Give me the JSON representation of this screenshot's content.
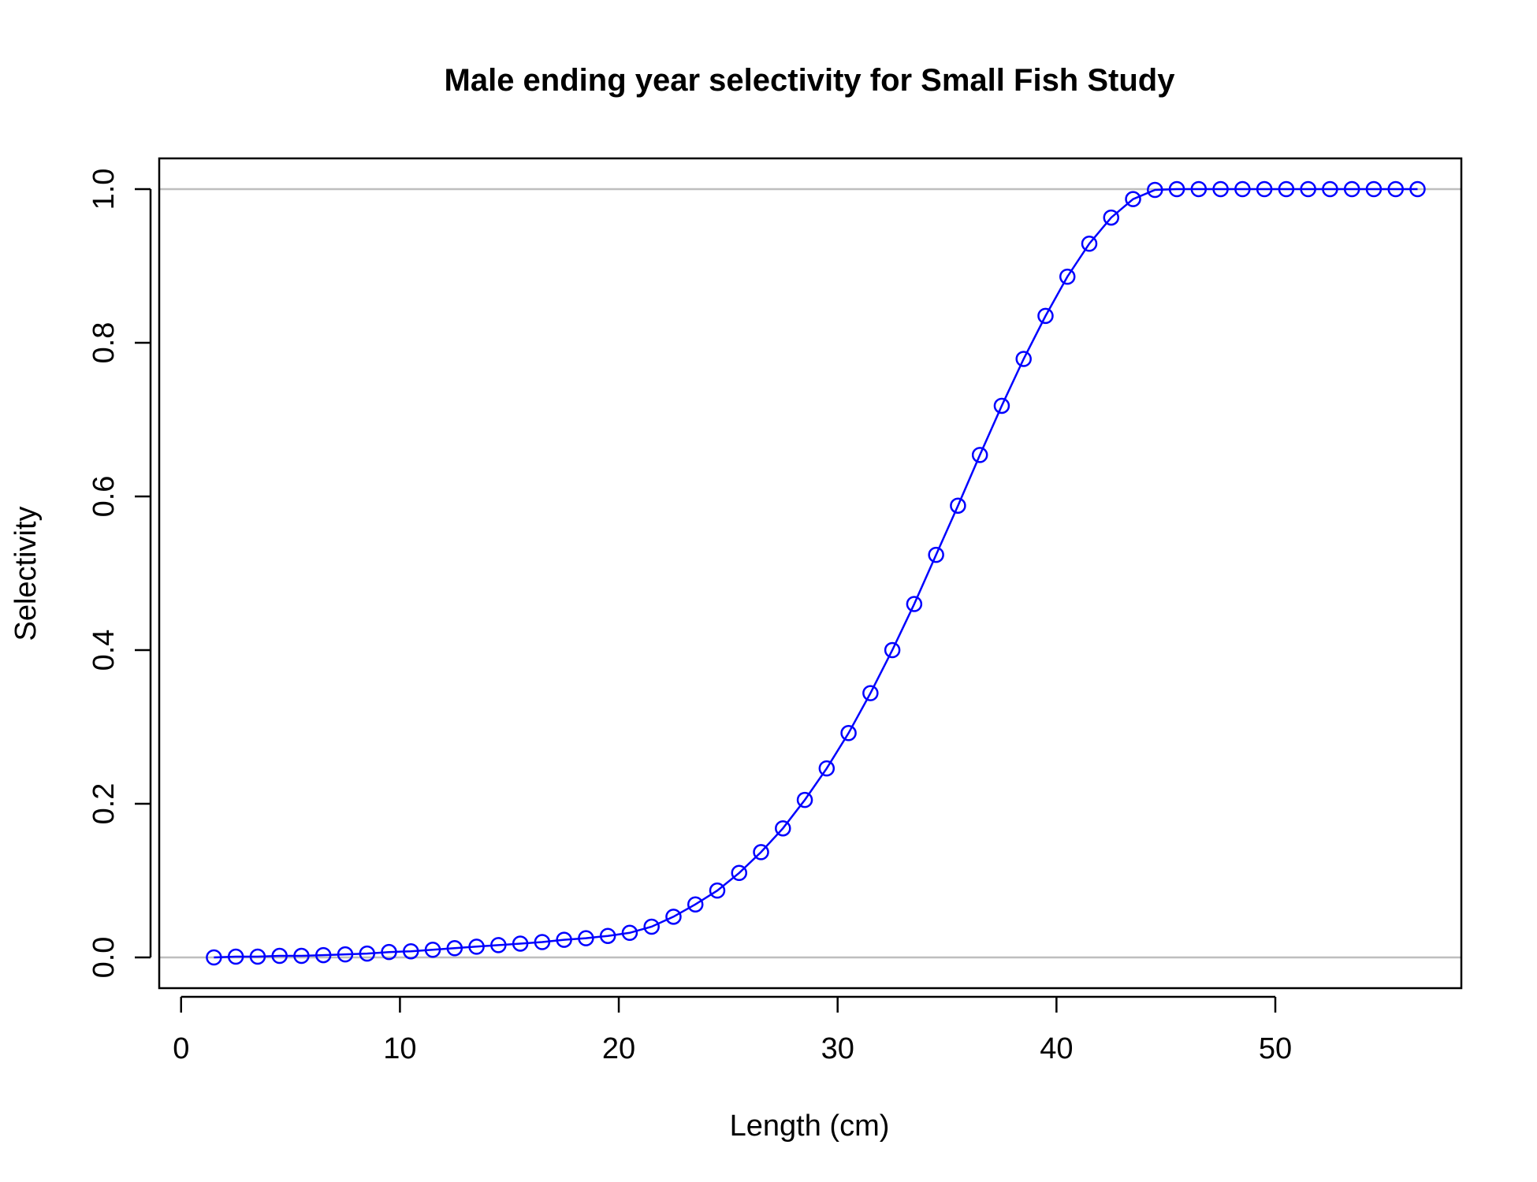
{
  "chart_data": {
    "type": "line",
    "title": "Male ending year selectivity for Small Fish Study",
    "xlabel": "Length (cm)",
    "ylabel": "Selectivity",
    "xlim": [
      -1.0,
      58.5
    ],
    "ylim": [
      -0.04,
      1.04
    ],
    "x_ticks": [
      0,
      10,
      20,
      30,
      40,
      50
    ],
    "y_ticks": [
      0.0,
      0.2,
      0.4,
      0.6,
      0.8,
      1.0
    ],
    "x_tick_labels": [
      "0",
      "10",
      "20",
      "30",
      "40",
      "50"
    ],
    "y_tick_labels": [
      "0.0",
      "0.2",
      "0.4",
      "0.6",
      "0.8",
      "1.0"
    ],
    "reference_lines_y": [
      0,
      1
    ],
    "reference_line_color": "#bebebe",
    "series_color": "#0000ff",
    "marker": "open-circle",
    "series": [
      {
        "x": [
          1.5,
          2.5,
          3.5,
          4.5,
          5.5,
          6.5,
          7.5,
          8.5,
          9.5,
          10.5,
          11.5,
          12.5,
          13.5,
          14.5,
          15.5,
          16.5,
          17.5,
          18.5,
          19.5,
          20.5,
          21.5,
          22.5,
          23.5,
          24.5,
          25.5,
          26.5,
          27.5,
          28.5,
          29.5,
          30.5,
          31.5,
          32.5,
          33.5,
          34.5,
          35.5,
          36.5,
          37.5,
          38.5,
          39.5,
          40.5,
          41.5,
          42.5,
          43.5,
          44.5,
          45.5,
          46.5,
          47.5,
          48.5,
          49.5,
          50.5,
          51.5,
          52.5,
          53.5,
          54.5,
          55.5,
          56.5
        ],
        "y": [
          0.0,
          0.001,
          0.001,
          0.002,
          0.002,
          0.003,
          0.004,
          0.005,
          0.007,
          0.008,
          0.01,
          0.012,
          0.014,
          0.016,
          0.018,
          0.02,
          0.023,
          0.025,
          0.028,
          0.032,
          0.04,
          0.053,
          0.069,
          0.087,
          0.11,
          0.137,
          0.168,
          0.205,
          0.246,
          0.292,
          0.344,
          0.4,
          0.46,
          0.524,
          0.588,
          0.654,
          0.718,
          0.779,
          0.835,
          0.886,
          0.929,
          0.963,
          0.987,
          0.999,
          1.0,
          1.0,
          1.0,
          1.0,
          1.0,
          1.0,
          1.0,
          1.0,
          1.0,
          1.0,
          1.0,
          1.0
        ]
      }
    ]
  }
}
